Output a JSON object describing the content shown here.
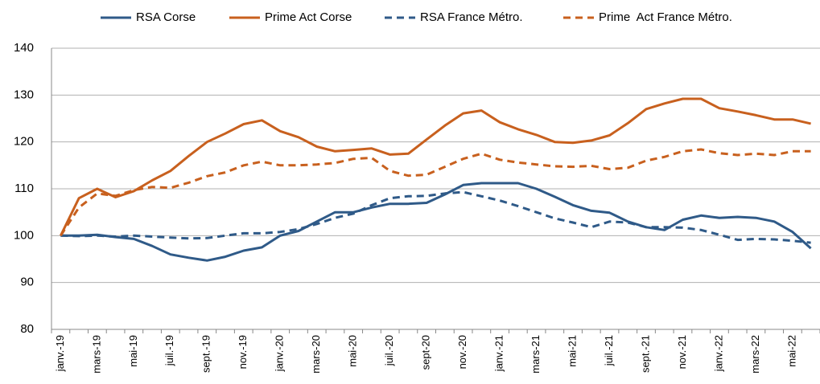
{
  "chart_data": {
    "type": "line",
    "categories": [
      "janv.-19",
      null,
      "mars-19",
      null,
      "mai-19",
      null,
      "juil.-19",
      null,
      "sept.-19",
      null,
      "nov.-19",
      null,
      "janv.-20",
      null,
      "mars-20",
      null,
      "mai-20",
      null,
      "juil.-20",
      null,
      "sept-20",
      null,
      "nov.-20",
      null,
      "janv.-21",
      null,
      "mars-21",
      null,
      "mai-21",
      null,
      "juil.-21",
      null,
      "sept.-21",
      null,
      "nov.-21",
      null,
      "janv.-22",
      null,
      "mars-22",
      null,
      "mai-22",
      null
    ],
    "series": [
      {
        "name": "RSA Corse",
        "color": "#2f5a88",
        "dash": false,
        "values": [
          100,
          100,
          100.2,
          99.7,
          99.3,
          97.8,
          96,
          95.3,
          94.7,
          95.5,
          96.8,
          97.5,
          100,
          101,
          103,
          105,
          105,
          106,
          106.8,
          106.8,
          107,
          108.8,
          110.8,
          111.2,
          111.2,
          111.2,
          110,
          108.3,
          106.5,
          105.3,
          104.9,
          103,
          101.8,
          101.2,
          103.4,
          104.3,
          103.8,
          104,
          103.8,
          103,
          100.8,
          97.3
        ]
      },
      {
        "name": "Prime Act Corse",
        "color": "#c8601e",
        "dash": false,
        "values": [
          100,
          108,
          110,
          108.2,
          109.5,
          111.8,
          113.8,
          117,
          120,
          121.8,
          123.8,
          124.6,
          122.3,
          121,
          119,
          118,
          118.3,
          118.6,
          117.3,
          117.5,
          120.5,
          123.5,
          126.1,
          126.7,
          124.2,
          122.7,
          121.5,
          120,
          119.8,
          120.3,
          121.4,
          124,
          127,
          128.2,
          129.2,
          129.2,
          127.2,
          126.5,
          125.7,
          124.8,
          124.8,
          123.9
        ]
      },
      {
        "name": "RSA France Métro.",
        "color": "#2f5a88",
        "dash": true,
        "values": [
          100,
          99.9,
          100,
          99.8,
          100,
          99.8,
          99.6,
          99.4,
          99.5,
          100,
          100.5,
          100.5,
          100.8,
          101.4,
          102.5,
          103.8,
          104.7,
          106.5,
          108,
          108.4,
          108.5,
          109,
          109.3,
          108.4,
          107.5,
          106.3,
          105,
          103.7,
          102.8,
          101.8,
          103,
          102.8,
          101.8,
          101.8,
          101.7,
          101.2,
          100.2,
          99.1,
          99.3,
          99.2,
          98.9,
          98.5
        ]
      },
      {
        "name": "Prime  Act France Métro.",
        "color": "#c8601e",
        "dash": true,
        "values": [
          100,
          106,
          109,
          108.5,
          109.7,
          110.4,
          110.2,
          111.3,
          112.7,
          113.5,
          115,
          115.8,
          115,
          115,
          115.2,
          115.5,
          116.4,
          116.6,
          113.8,
          112.8,
          113,
          114.7,
          116.4,
          117.5,
          116.2,
          115.6,
          115.2,
          114.8,
          114.7,
          114.9,
          114.2,
          114.5,
          116,
          116.8,
          118,
          118.4,
          117.6,
          117.2,
          117.5,
          117.2,
          118,
          118
        ]
      }
    ],
    "ylim": [
      80,
      140
    ],
    "yticks": [
      80,
      90,
      100,
      110,
      120,
      130,
      140
    ],
    "grid": true,
    "legend": "top"
  }
}
